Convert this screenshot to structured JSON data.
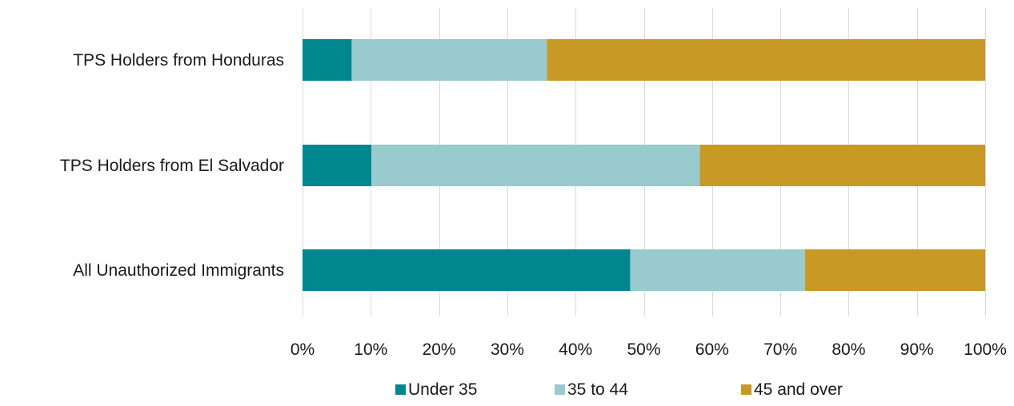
{
  "chart_data": {
    "type": "bar",
    "orientation": "horizontal",
    "stacked": true,
    "categories": [
      "TPS Holders from Honduras",
      "TPS Holders from El Salvador",
      "All Unauthorized Immigrants"
    ],
    "series": [
      {
        "name": "Under 35",
        "color": "#00868f",
        "values": [
          7.2,
          10.1,
          48.0
        ]
      },
      {
        "name": "35 to 44",
        "color": "#99cbce",
        "values": [
          28.6,
          48.1,
          25.6
        ]
      },
      {
        "name": "45 and over",
        "color": "#c99925",
        "values": [
          64.2,
          41.8,
          26.4
        ]
      }
    ],
    "xlim": [
      0,
      100
    ],
    "xticks": [
      "0%",
      "10%",
      "20%",
      "30%",
      "40%",
      "50%",
      "60%",
      "70%",
      "80%",
      "90%",
      "100%"
    ],
    "grid": true,
    "legend_position": "bottom"
  }
}
